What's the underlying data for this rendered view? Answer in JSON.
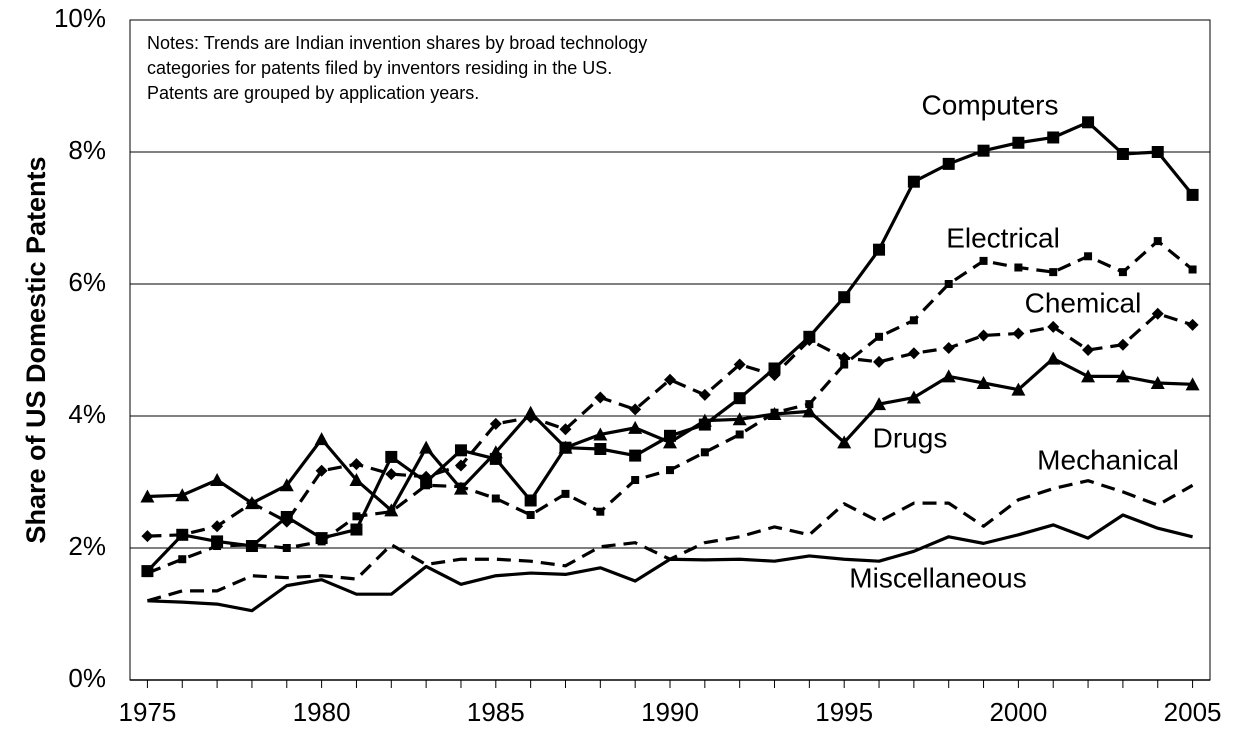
{
  "chart_data": {
    "type": "line",
    "ylabel": "Share of US Domestic Patents",
    "notes": [
      "Notes: Trends are Indian invention shares by broad technology",
      "categories for patents filed by inventors residing in the US.",
      "Patents are grouped by application years."
    ],
    "x": [
      1975,
      1976,
      1977,
      1978,
      1979,
      1980,
      1981,
      1982,
      1983,
      1984,
      1985,
      1986,
      1987,
      1988,
      1989,
      1990,
      1991,
      1992,
      1993,
      1994,
      1995,
      1996,
      1997,
      1998,
      1999,
      2000,
      2001,
      2002,
      2003,
      2004,
      2005
    ],
    "xlim": [
      1974.5,
      2005.5
    ],
    "xticks": [
      1975,
      1980,
      1985,
      1990,
      1995,
      2000,
      2005
    ],
    "ylim": [
      0,
      10
    ],
    "yticks": [
      {
        "value": 0,
        "label": "0%"
      },
      {
        "value": 2,
        "label": "2%"
      },
      {
        "value": 4,
        "label": "4%"
      },
      {
        "value": 6,
        "label": "6%"
      },
      {
        "value": 8,
        "label": "8%"
      },
      {
        "value": 10,
        "label": "10%"
      }
    ],
    "grid": true,
    "series": [
      {
        "name": "Computers",
        "color": "#000000",
        "dashed": false,
        "marker": "square",
        "values": [
          1.65,
          2.2,
          2.1,
          2.03,
          2.47,
          2.15,
          2.28,
          3.38,
          3.0,
          3.48,
          3.35,
          2.72,
          3.52,
          3.5,
          3.4,
          3.7,
          3.87,
          4.27,
          4.72,
          5.2,
          5.8,
          6.52,
          7.55,
          7.82,
          8.02,
          8.14,
          8.22,
          8.45,
          7.97,
          8.0,
          7.35
        ]
      },
      {
        "name": "Electrical",
        "color": "#000000",
        "dashed": true,
        "marker": "small-square",
        "values": [
          1.62,
          1.83,
          2.03,
          2.05,
          2.0,
          2.1,
          2.48,
          2.55,
          2.95,
          2.93,
          2.75,
          2.5,
          2.82,
          2.55,
          3.03,
          3.18,
          3.45,
          3.72,
          4.05,
          4.18,
          4.78,
          5.2,
          5.45,
          6.0,
          6.35,
          6.25,
          6.18,
          6.42,
          6.18,
          6.65,
          6.22
        ]
      },
      {
        "name": "Chemical",
        "color": "#000000",
        "dashed": true,
        "marker": "diamond",
        "values": [
          2.18,
          2.2,
          2.33,
          2.68,
          2.4,
          3.17,
          3.27,
          3.12,
          3.08,
          3.25,
          3.88,
          3.98,
          3.8,
          4.28,
          4.1,
          4.55,
          4.32,
          4.78,
          4.62,
          5.15,
          4.88,
          4.82,
          4.95,
          5.03,
          5.22,
          5.25,
          5.35,
          5.0,
          5.08,
          5.55,
          5.38
        ]
      },
      {
        "name": "Drugs",
        "color": "#000000",
        "dashed": false,
        "marker": "triangle",
        "values": [
          2.78,
          2.8,
          3.03,
          2.68,
          2.95,
          3.65,
          3.03,
          2.57,
          3.52,
          2.9,
          3.45,
          4.05,
          3.52,
          3.72,
          3.82,
          3.6,
          3.93,
          3.95,
          4.03,
          4.07,
          3.6,
          4.18,
          4.28,
          4.6,
          4.5,
          4.4,
          4.87,
          4.6,
          4.6,
          4.5,
          4.48
        ]
      },
      {
        "name": "Mechanical",
        "color": "#000000",
        "dashed": true,
        "values": [
          1.2,
          1.35,
          1.35,
          1.58,
          1.55,
          1.58,
          1.53,
          2.05,
          1.75,
          1.83,
          1.83,
          1.8,
          1.73,
          2.02,
          2.08,
          1.83,
          2.08,
          2.17,
          2.32,
          2.2,
          2.67,
          2.4,
          2.68,
          2.68,
          2.33,
          2.73,
          2.9,
          3.02,
          2.85,
          2.65,
          2.95
        ]
      },
      {
        "name": "Miscellaneous",
        "color": "#000000",
        "dashed": false,
        "values": [
          1.2,
          1.18,
          1.15,
          1.05,
          1.43,
          1.52,
          1.3,
          1.3,
          1.72,
          1.45,
          1.58,
          1.62,
          1.6,
          1.7,
          1.5,
          1.83,
          1.82,
          1.83,
          1.8,
          1.88,
          1.83,
          1.8,
          1.95,
          2.17,
          2.07,
          2.2,
          2.35,
          2.15,
          2.5,
          2.3,
          2.17
        ]
      }
    ]
  }
}
